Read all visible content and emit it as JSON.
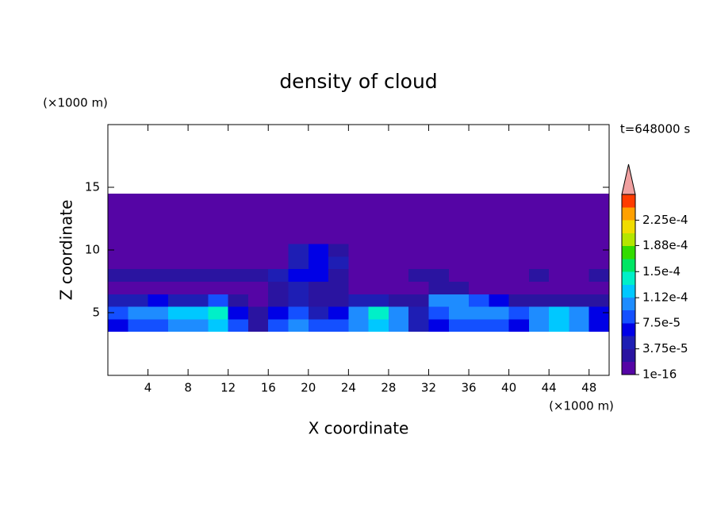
{
  "chart_data": {
    "type": "contour",
    "title": "density of cloud",
    "x_label": "X coordinate",
    "y_label": "Z coordinate",
    "x_unit": "(×1000 m)",
    "y_unit": "(×1000 m)",
    "time_label": "t=648000 s",
    "xlim": [
      0,
      50
    ],
    "ylim": [
      0,
      20
    ],
    "xticks": [
      4,
      8,
      12,
      16,
      20,
      24,
      28,
      32,
      36,
      40,
      44,
      48
    ],
    "yticks": [
      5,
      10,
      15
    ],
    "x": [
      1,
      3,
      5,
      7,
      9,
      11,
      13,
      15,
      17,
      19,
      21,
      23,
      25,
      27,
      29,
      31,
      33,
      35,
      37,
      39,
      41,
      43,
      45,
      47,
      49
    ],
    "y": [
      4,
      5,
      6,
      7,
      8,
      9,
      10,
      11,
      12,
      13,
      14
    ],
    "z": [
      [
        6e-05,
        8e-05,
        9e-05,
        0.0001,
        0.00011,
        0.00012,
        8e-05,
        3e-05,
        9e-05,
        0.0001,
        8e-05,
        9e-05,
        0.00011,
        0.00012,
        0.0001,
        5e-05,
        7e-05,
        8e-05,
        9e-05,
        8e-05,
        7e-05,
        0.0001,
        0.00012,
        0.0001,
        6e-05
      ],
      [
        9e-05,
        0.00011,
        0.00011,
        0.00012,
        0.00013,
        0.00014,
        7e-05,
        2e-05,
        6e-05,
        9e-05,
        5e-05,
        6e-05,
        0.00011,
        0.00014,
        0.00011,
        4e-05,
        9e-05,
        0.0001,
        0.00011,
        0.0001,
        8e-05,
        0.00011,
        0.00013,
        0.0001,
        7e-05
      ],
      [
        4e-05,
        5e-05,
        6e-05,
        4e-05,
        5e-05,
        8e-05,
        2e-05,
        1e-05,
        3e-05,
        4e-05,
        2e-05,
        3e-05,
        4e-05,
        5e-05,
        3e-05,
        2e-05,
        0.0001,
        0.00011,
        9e-05,
        6e-05,
        3e-05,
        2e-05,
        3e-05,
        2e-05,
        2e-05
      ],
      [
        5e-06,
        5e-06,
        1e-05,
        1e-05,
        1e-05,
        1e-05,
        1e-05,
        1.5e-05,
        2e-05,
        4e-05,
        3e-05,
        2e-05,
        1e-05,
        5e-06,
        5e-06,
        5e-06,
        3e-05,
        2e-05,
        1e-05,
        5e-06,
        5e-06,
        5e-06,
        5e-06,
        5e-06,
        5e-06
      ],
      [
        2e-05,
        2.5e-05,
        2e-05,
        2e-05,
        2.5e-05,
        2e-05,
        2.5e-05,
        2e-05,
        4e-05,
        6e-05,
        7e-05,
        3e-05,
        1e-05,
        5e-06,
        5e-06,
        2e-05,
        2e-05,
        5e-06,
        5e-06,
        5e-06,
        1e-05,
        2e-05,
        1e-05,
        5e-06,
        2e-05
      ],
      [
        5e-06,
        5e-06,
        5e-06,
        5e-06,
        5e-06,
        5e-06,
        5e-06,
        5e-06,
        5e-06,
        5e-05,
        7e-05,
        4e-05,
        5e-06,
        5e-06,
        5e-06,
        5e-06,
        5e-06,
        5e-06,
        5e-06,
        5e-06,
        5e-06,
        5e-06,
        5e-06,
        5e-06,
        5e-06
      ],
      [
        5e-06,
        5e-06,
        5e-06,
        5e-06,
        5e-06,
        5e-06,
        5e-06,
        5e-06,
        5e-06,
        5e-05,
        6e-05,
        3e-05,
        5e-06,
        5e-06,
        5e-06,
        5e-06,
        5e-06,
        5e-06,
        5e-06,
        5e-06,
        5e-06,
        5e-06,
        5e-06,
        5e-06,
        5e-06
      ],
      [
        1e-06,
        1e-06,
        1e-06,
        1e-06,
        1e-06,
        1e-06,
        1e-06,
        1e-06,
        1e-06,
        1e-06,
        1e-06,
        1e-06,
        1e-06,
        1e-06,
        1e-06,
        1e-06,
        1e-06,
        1e-06,
        1e-06,
        1e-06,
        1e-06,
        1e-06,
        1e-06,
        1e-06,
        1e-06
      ],
      [
        1e-06,
        1e-06,
        1e-06,
        1e-06,
        1e-06,
        1e-06,
        1e-06,
        1e-06,
        1e-06,
        1e-06,
        1e-06,
        1e-06,
        1e-06,
        1e-06,
        1e-06,
        1e-06,
        1e-06,
        1e-06,
        1e-06,
        1e-06,
        1e-06,
        1e-06,
        1e-06,
        1e-06,
        1e-06
      ],
      [
        1e-06,
        1e-06,
        1e-06,
        1e-06,
        1e-06,
        1e-06,
        1e-06,
        1e-06,
        1e-06,
        1e-06,
        1e-06,
        1e-06,
        1e-06,
        1e-06,
        1e-06,
        1e-06,
        1e-06,
        1e-06,
        1e-06,
        1e-06,
        1e-06,
        1e-06,
        1e-06,
        1e-06,
        1e-06
      ],
      [
        1e-06,
        1e-06,
        1e-06,
        1e-06,
        1e-06,
        1e-06,
        1e-06,
        1e-06,
        1e-06,
        1e-06,
        1e-06,
        1e-06,
        1e-06,
        1e-06,
        1e-06,
        1e-06,
        1e-06,
        1e-06,
        1e-06,
        1e-06,
        1e-06,
        1e-06,
        1e-06,
        1e-06,
        1e-06
      ]
    ],
    "clim": [
      1e-16,
      0.0002625
    ],
    "colors": [
      "#5505a5",
      "#2a14a0",
      "#1e1eb4",
      "#0000e6",
      "#1450ff",
      "#1e8cff",
      "#00c8ff",
      "#00f0c8",
      "#00e664",
      "#32dc00",
      "#b4e600",
      "#f0dc00",
      "#ffa000",
      "#ff3c00"
    ],
    "over_color": "#f0a0a0",
    "cticks": [
      1e-16,
      {
        "value": 3.75e-05,
        "label": "3.75e-5"
      },
      {
        "value": 7.5e-05,
        "label": "7.5e-5"
      },
      {
        "value": 0.000112,
        "label": "1.12e-4"
      },
      {
        "value": 0.00015,
        "label": "1.5e-4"
      },
      {
        "value": 0.000188,
        "label": "1.88e-4"
      },
      {
        "value": 0.000225,
        "label": "2.25e-4"
      }
    ]
  }
}
